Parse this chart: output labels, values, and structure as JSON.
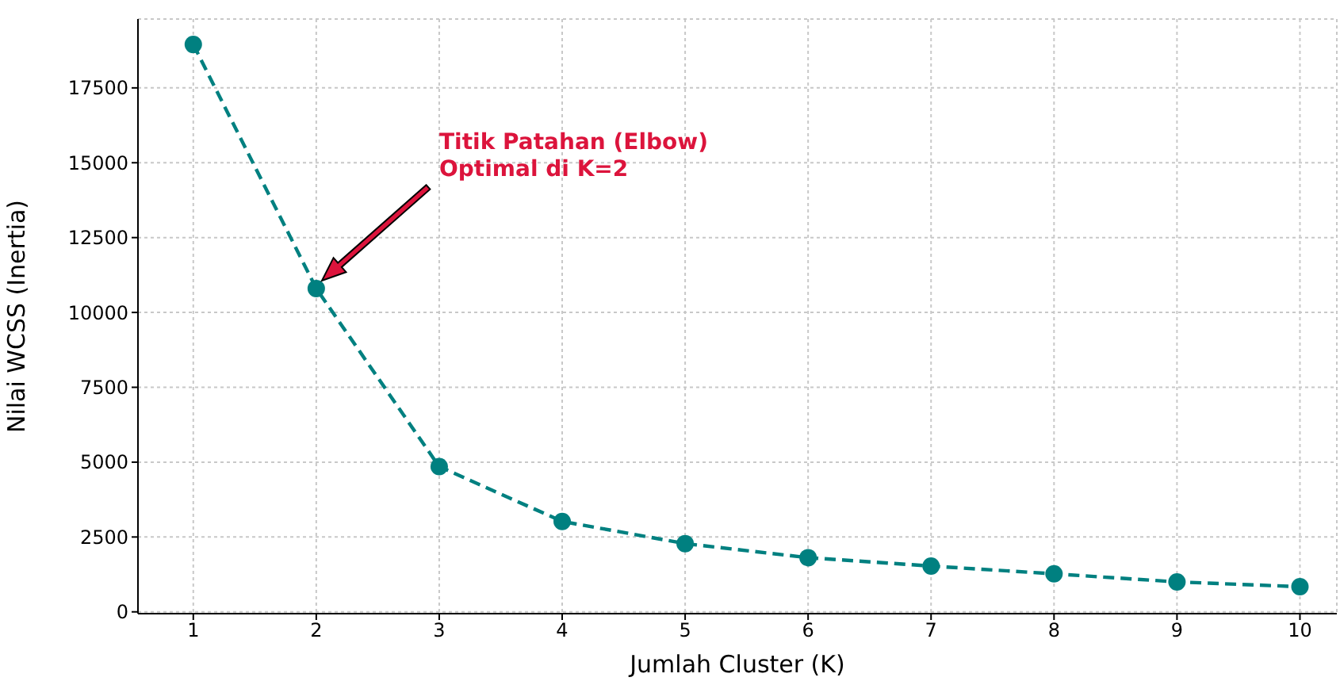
{
  "chart_data": {
    "type": "line",
    "xlabel": "Jumlah Cluster (K)",
    "ylabel": "Nilai WCSS (Inertia)",
    "x": [
      1,
      2,
      3,
      4,
      5,
      6,
      7,
      8,
      9,
      10
    ],
    "series": [
      {
        "color": "#008080",
        "values": [
          18950,
          10800,
          4850,
          3020,
          2280,
          1810,
          1530,
          1270,
          1000,
          840
        ]
      }
    ],
    "xlim": [
      0.55,
      10.3
    ],
    "xticks": [
      1,
      2,
      3,
      4,
      5,
      6,
      7,
      8,
      9,
      10
    ],
    "ylim": [
      -60,
      19800
    ],
    "yticks": [
      0,
      2500,
      5000,
      7500,
      10000,
      12500,
      15000,
      17500
    ],
    "grid": true,
    "marker": "circle",
    "line_style": "dashed",
    "legend": false,
    "annotations": [
      "Titik Patahan (Elbow)\nOptimal di K=2"
    ]
  }
}
